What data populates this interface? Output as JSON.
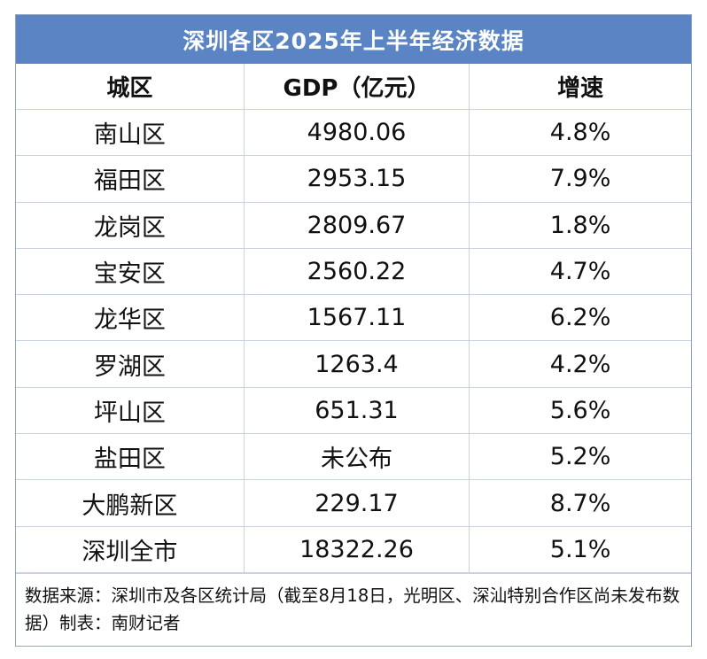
{
  "title": "深圳各区2025年上半年经济数据",
  "headers": [
    "城区",
    "GDP（亿元）",
    "增速"
  ],
  "rows": [
    {
      "district": "南山区",
      "gdp": "4980.06",
      "growth": "4.8%"
    },
    {
      "district": "福田区",
      "gdp": "2953.15",
      "growth": "7.9%"
    },
    {
      "district": "龙岗区",
      "gdp": "2809.67",
      "growth": "1.8%"
    },
    {
      "district": "宝安区",
      "gdp": "2560.22",
      "growth": "4.7%"
    },
    {
      "district": "龙华区",
      "gdp": "1567.11",
      "growth": "6.2%"
    },
    {
      "district": "罗湖区",
      "gdp": "1263.4",
      "growth": "4.2%"
    },
    {
      "district": "坪山区",
      "gdp": "651.31",
      "growth": "5.6%"
    },
    {
      "district": "盐田区",
      "gdp": "未公布",
      "growth": "5.2%"
    },
    {
      "district": "大鹏新区",
      "gdp": "229.17",
      "growth": "8.7%"
    },
    {
      "district": "深圳全市",
      "gdp": "18322.26",
      "growth": "5.1%"
    }
  ],
  "note": "数据来源：深圳市及各区统计局（截至8月18日，光明区、深汕特别合作区尚未发布数据）制表：南财记者"
}
